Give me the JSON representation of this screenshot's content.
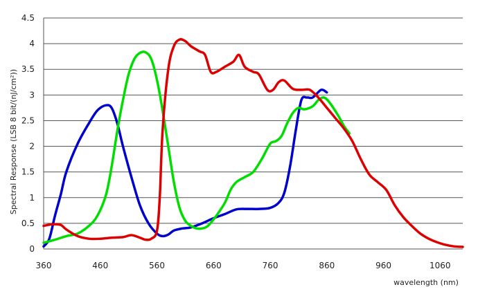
{
  "chart_data": {
    "type": "line",
    "title": "",
    "xlabel": "wavelength (nm)",
    "ylabel": "Spectral Response (LSB 8 bit/(nJ/cm²))",
    "xlim": [
      360,
      1100
    ],
    "ylim": [
      0,
      4.5
    ],
    "x_ticks": [
      360,
      460,
      560,
      660,
      760,
      860,
      960,
      1060
    ],
    "x_tick_labels": [
      "360",
      "460",
      "560",
      "660",
      "760",
      "860",
      "960",
      "1060"
    ],
    "y_ticks": [
      0,
      0.5,
      1,
      1.5,
      2,
      2.5,
      3,
      3.5,
      4,
      4.5
    ],
    "y_tick_labels": [
      "0",
      "0.5",
      "1",
      "1.5",
      "2",
      "2.5",
      "3",
      "3.5",
      "4",
      "4.5"
    ],
    "grid": "horizontal",
    "legend": "none",
    "series": [
      {
        "color": "#0000cc",
        "points": [
          [
            360,
            0.05
          ],
          [
            370,
            0.2
          ],
          [
            380,
            0.65
          ],
          [
            390,
            1.05
          ],
          [
            400,
            1.5
          ],
          [
            420,
            2.05
          ],
          [
            440,
            2.45
          ],
          [
            455,
            2.7
          ],
          [
            470,
            2.8
          ],
          [
            480,
            2.75
          ],
          [
            490,
            2.45
          ],
          [
            500,
            2.0
          ],
          [
            515,
            1.4
          ],
          [
            530,
            0.85
          ],
          [
            545,
            0.5
          ],
          [
            560,
            0.3
          ],
          [
            570,
            0.25
          ],
          [
            580,
            0.28
          ],
          [
            590,
            0.36
          ],
          [
            605,
            0.4
          ],
          [
            620,
            0.42
          ],
          [
            640,
            0.5
          ],
          [
            660,
            0.6
          ],
          [
            680,
            0.68
          ],
          [
            700,
            0.77
          ],
          [
            720,
            0.78
          ],
          [
            740,
            0.78
          ],
          [
            760,
            0.8
          ],
          [
            775,
            0.9
          ],
          [
            785,
            1.1
          ],
          [
            795,
            1.6
          ],
          [
            805,
            2.3
          ],
          [
            815,
            2.9
          ],
          [
            825,
            2.95
          ],
          [
            835,
            2.95
          ],
          [
            850,
            3.1
          ],
          [
            860,
            3.05
          ]
        ]
      },
      {
        "color": "#00dd00",
        "points": [
          [
            360,
            0.12
          ],
          [
            380,
            0.18
          ],
          [
            400,
            0.25
          ],
          [
            420,
            0.3
          ],
          [
            440,
            0.45
          ],
          [
            455,
            0.65
          ],
          [
            470,
            1.05
          ],
          [
            480,
            1.6
          ],
          [
            490,
            2.3
          ],
          [
            500,
            2.9
          ],
          [
            510,
            3.4
          ],
          [
            520,
            3.7
          ],
          [
            530,
            3.82
          ],
          [
            540,
            3.83
          ],
          [
            550,
            3.7
          ],
          [
            560,
            3.3
          ],
          [
            570,
            2.7
          ],
          [
            580,
            2.0
          ],
          [
            590,
            1.3
          ],
          [
            600,
            0.8
          ],
          [
            610,
            0.55
          ],
          [
            620,
            0.45
          ],
          [
            630,
            0.4
          ],
          [
            640,
            0.4
          ],
          [
            650,
            0.45
          ],
          [
            665,
            0.65
          ],
          [
            680,
            0.9
          ],
          [
            690,
            1.15
          ],
          [
            700,
            1.3
          ],
          [
            715,
            1.4
          ],
          [
            730,
            1.5
          ],
          [
            745,
            1.75
          ],
          [
            760,
            2.05
          ],
          [
            770,
            2.1
          ],
          [
            780,
            2.2
          ],
          [
            790,
            2.45
          ],
          [
            800,
            2.65
          ],
          [
            810,
            2.75
          ],
          [
            820,
            2.72
          ],
          [
            835,
            2.78
          ],
          [
            845,
            2.9
          ],
          [
            855,
            2.95
          ],
          [
            865,
            2.85
          ],
          [
            880,
            2.6
          ],
          [
            890,
            2.4
          ],
          [
            900,
            2.25
          ]
        ]
      },
      {
        "color": "#dd0000",
        "points": [
          [
            360,
            0.45
          ],
          [
            375,
            0.48
          ],
          [
            390,
            0.47
          ],
          [
            400,
            0.38
          ],
          [
            420,
            0.25
          ],
          [
            440,
            0.2
          ],
          [
            460,
            0.2
          ],
          [
            480,
            0.22
          ],
          [
            500,
            0.23
          ],
          [
            515,
            0.27
          ],
          [
            530,
            0.22
          ],
          [
            540,
            0.18
          ],
          [
            550,
            0.2
          ],
          [
            560,
            0.35
          ],
          [
            565,
            1.0
          ],
          [
            570,
            2.3
          ],
          [
            580,
            3.5
          ],
          [
            590,
            3.95
          ],
          [
            600,
            4.08
          ],
          [
            610,
            4.05
          ],
          [
            620,
            3.95
          ],
          [
            635,
            3.85
          ],
          [
            645,
            3.78
          ],
          [
            655,
            3.45
          ],
          [
            665,
            3.45
          ],
          [
            680,
            3.55
          ],
          [
            695,
            3.65
          ],
          [
            705,
            3.78
          ],
          [
            715,
            3.55
          ],
          [
            730,
            3.45
          ],
          [
            740,
            3.4
          ],
          [
            755,
            3.1
          ],
          [
            765,
            3.1
          ],
          [
            775,
            3.25
          ],
          [
            785,
            3.28
          ],
          [
            800,
            3.12
          ],
          [
            815,
            3.1
          ],
          [
            830,
            3.1
          ],
          [
            845,
            2.95
          ],
          [
            860,
            2.75
          ],
          [
            875,
            2.55
          ],
          [
            890,
            2.35
          ],
          [
            905,
            2.1
          ],
          [
            920,
            1.75
          ],
          [
            935,
            1.45
          ],
          [
            950,
            1.3
          ],
          [
            965,
            1.15
          ],
          [
            980,
            0.85
          ],
          [
            995,
            0.62
          ],
          [
            1010,
            0.45
          ],
          [
            1025,
            0.3
          ],
          [
            1040,
            0.2
          ],
          [
            1055,
            0.13
          ],
          [
            1070,
            0.08
          ],
          [
            1085,
            0.05
          ],
          [
            1100,
            0.04
          ]
        ]
      }
    ]
  }
}
